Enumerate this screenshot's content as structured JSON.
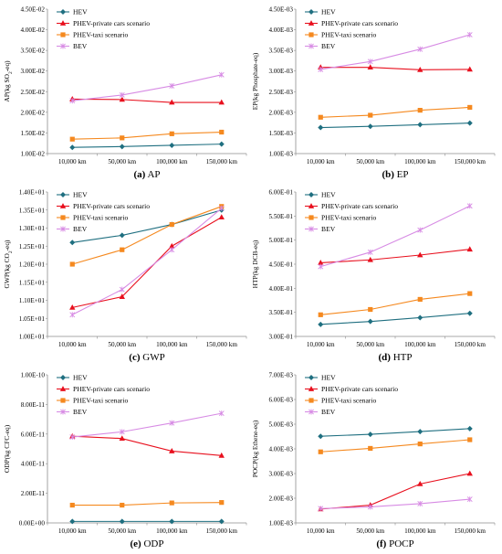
{
  "series_styles": [
    {
      "name": "HEV",
      "color": "#1f6f80",
      "marker": "diamond"
    },
    {
      "name": "PHEV-private cars scenario",
      "color": "#e8101e",
      "marker": "triangle"
    },
    {
      "name": "PHEV-taxi scenario",
      "color": "#f5891f",
      "marker": "square"
    },
    {
      "name": "BEV",
      "color": "#d78be4",
      "marker": "star"
    }
  ],
  "chart_data": [
    {
      "type": "line",
      "caption_letter": "(a)",
      "caption_name": "AP",
      "ylabel": "AP(kg SO₂-eq)",
      "categories": [
        "10,000 km",
        "50,000 km",
        "100,000 km",
        "150,000 km"
      ],
      "yticks": [
        "1.00E-02",
        "1.50E-02",
        "2.00E-02",
        "2.50E-02",
        "3.00E-02",
        "3.50E-02",
        "4.00E-02",
        "4.50E-02"
      ],
      "ylim": [
        0.01,
        0.045
      ],
      "series": [
        {
          "name": "HEV",
          "values": [
            0.0115,
            0.0117,
            0.012,
            0.0123
          ]
        },
        {
          "name": "PHEV-private cars scenario",
          "values": [
            0.0232,
            0.0231,
            0.0224,
            0.0224
          ]
        },
        {
          "name": "PHEV-taxi scenario",
          "values": [
            0.0135,
            0.0138,
            0.0148,
            0.0152
          ]
        },
        {
          "name": "BEV",
          "values": [
            0.0228,
            0.0242,
            0.0264,
            0.0291
          ]
        }
      ]
    },
    {
      "type": "line",
      "caption_letter": "(b)",
      "caption_name": "EP",
      "ylabel": "EP(kg Phosphate-eq)",
      "categories": [
        "10,000 km",
        "50,000 km",
        "100,000 km",
        "150,000 km"
      ],
      "yticks": [
        "1.00E-03",
        "1.50E-03",
        "2.00E-03",
        "2.50E-03",
        "3.00E-03",
        "3.50E-03",
        "4.00E-03",
        "4.50E-03"
      ],
      "ylim": [
        0.001,
        0.0045
      ],
      "series": [
        {
          "name": "HEV",
          "values": [
            0.00163,
            0.00166,
            0.0017,
            0.00174
          ]
        },
        {
          "name": "PHEV-private cars scenario",
          "values": [
            0.00309,
            0.00309,
            0.00303,
            0.00304
          ]
        },
        {
          "name": "PHEV-taxi scenario",
          "values": [
            0.00188,
            0.00193,
            0.00205,
            0.00212
          ]
        },
        {
          "name": "BEV",
          "values": [
            0.00304,
            0.00323,
            0.00353,
            0.00388
          ]
        }
      ]
    },
    {
      "type": "line",
      "caption_letter": "(c)",
      "caption_name": "GWP",
      "ylabel": "GWP(kg CO₂-eq)",
      "categories": [
        "10,000 km",
        "50,000 km",
        "100,000 km",
        "150,000 km"
      ],
      "yticks": [
        "1.00E+01",
        "1.05E+01",
        "1.10E+01",
        "1.15E+01",
        "1.20E+01",
        "1.25E+01",
        "1.30E+01",
        "1.35E+01",
        "1.40E+01"
      ],
      "ylim": [
        10.0,
        14.0
      ],
      "series": [
        {
          "name": "HEV",
          "values": [
            12.6,
            12.8,
            13.1,
            13.5
          ]
        },
        {
          "name": "PHEV-private cars scenario",
          "values": [
            10.8,
            11.1,
            12.5,
            13.3
          ]
        },
        {
          "name": "PHEV-taxi scenario",
          "values": [
            12.0,
            12.4,
            13.1,
            13.6
          ]
        },
        {
          "name": "BEV",
          "values": [
            10.6,
            11.3,
            12.4,
            13.55
          ]
        }
      ]
    },
    {
      "type": "line",
      "caption_letter": "(d)",
      "caption_name": "HTP",
      "ylabel": "HTP(kg DCB-eq)",
      "categories": [
        "10,000 km",
        "50,000 km",
        "100,000 km",
        "150,000 km"
      ],
      "yticks": [
        "3.00E-01",
        "3.50E-01",
        "4.00E-01",
        "4.50E-01",
        "5.00E-01",
        "5.50E-01",
        "6.00E-01"
      ],
      "ylim": [
        0.3,
        0.6
      ],
      "series": [
        {
          "name": "HEV",
          "values": [
            0.325,
            0.331,
            0.339,
            0.348
          ]
        },
        {
          "name": "PHEV-private cars scenario",
          "values": [
            0.453,
            0.459,
            0.469,
            0.481
          ]
        },
        {
          "name": "PHEV-taxi scenario",
          "values": [
            0.345,
            0.356,
            0.377,
            0.389
          ]
        },
        {
          "name": "BEV",
          "values": [
            0.445,
            0.475,
            0.521,
            0.571
          ]
        }
      ]
    },
    {
      "type": "line",
      "caption_letter": "(e)",
      "caption_name": "ODP",
      "ylabel": "ODP(kg CFC-eq)",
      "categories": [
        "10,000 km",
        "50,000 km",
        "100,000 km",
        "150,000 km"
      ],
      "yticks": [
        "0.00E+00",
        "2.00E-11",
        "4.00E-11",
        "6.00E-11",
        "8.00E-11",
        "1.00E-10"
      ],
      "ylim": [
        0,
        1e-10
      ],
      "series": [
        {
          "name": "HEV",
          "values": [
            1e-12,
            1e-12,
            1e-12,
            1e-12
          ]
        },
        {
          "name": "PHEV-private cars scenario",
          "values": [
            5.85e-11,
            5.7e-11,
            4.85e-11,
            4.55e-11
          ]
        },
        {
          "name": "PHEV-taxi scenario",
          "values": [
            1.2e-11,
            1.2e-11,
            1.35e-11,
            1.38e-11
          ]
        },
        {
          "name": "BEV",
          "values": [
            5.8e-11,
            6.15e-11,
            6.75e-11,
            7.4e-11
          ]
        }
      ]
    },
    {
      "type": "line",
      "caption_letter": "(f)",
      "caption_name": "POCP",
      "ylabel": "POCP(kg Ethene-eq)",
      "categories": [
        "10,000 km",
        "50,000 km",
        "100,000 km",
        "150,000 km"
      ],
      "yticks": [
        "1.00E-03",
        "2.00E-03",
        "3.00E-03",
        "4.00E-03",
        "5.00E-03",
        "6.00E-03",
        "7.00E-03"
      ],
      "ylim": [
        0.001,
        0.007
      ],
      "series": [
        {
          "name": "HEV",
          "values": [
            0.00451,
            0.00459,
            0.0047,
            0.00482
          ]
        },
        {
          "name": "PHEV-private cars scenario",
          "values": [
            0.00156,
            0.00172,
            0.00258,
            0.003
          ]
        },
        {
          "name": "PHEV-taxi scenario",
          "values": [
            0.00388,
            0.00402,
            0.0042,
            0.00437
          ]
        },
        {
          "name": "BEV",
          "values": [
            0.00158,
            0.00165,
            0.00178,
            0.00196
          ]
        }
      ]
    }
  ]
}
